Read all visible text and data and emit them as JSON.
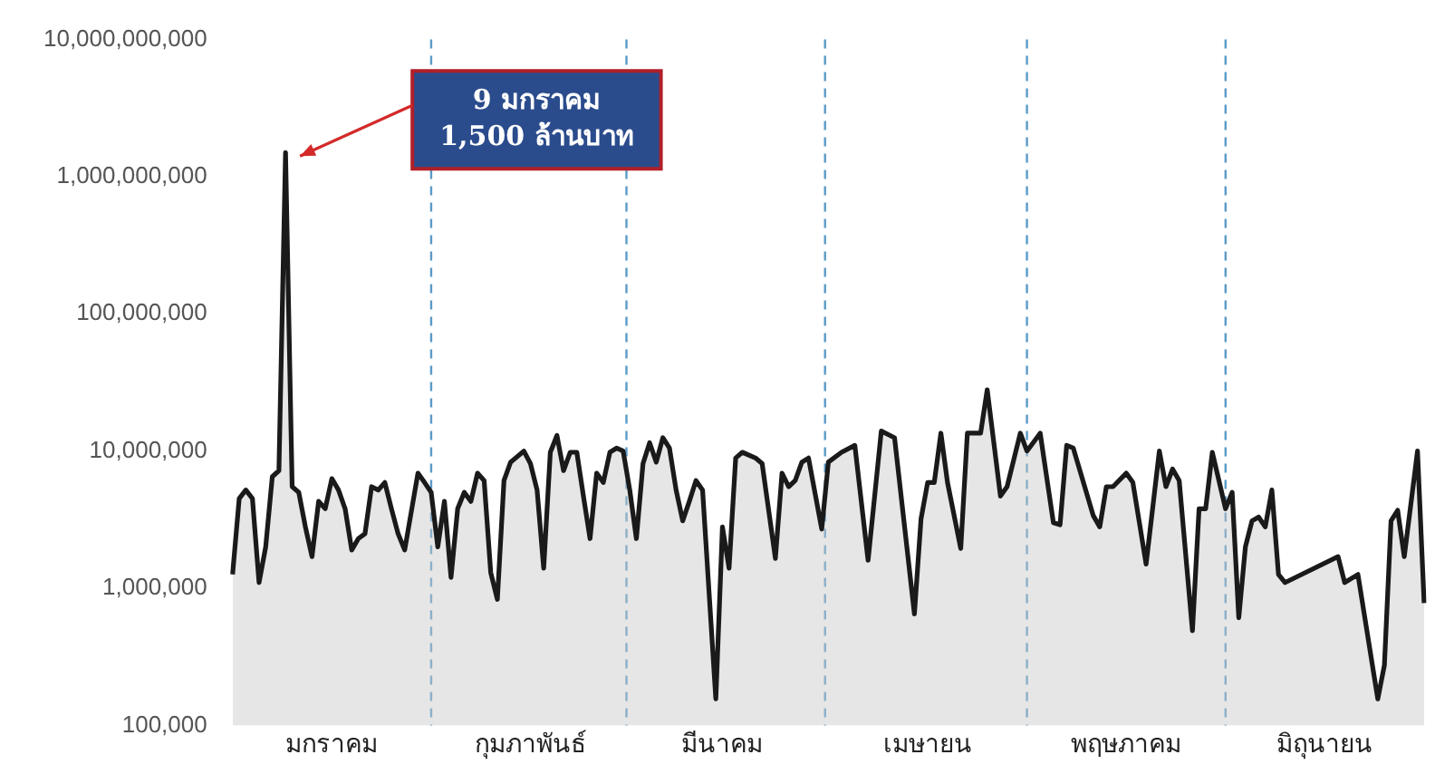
{
  "chart_data": {
    "type": "area",
    "categories": [
      null,
      null,
      null,
      null,
      null,
      null,
      null,
      null,
      null,
      null,
      null,
      null,
      null,
      null,
      null,
      "มกราคม",
      null,
      null,
      null,
      null,
      null,
      null,
      null,
      null,
      null,
      null,
      null,
      null,
      null,
      null,
      null,
      null,
      null,
      null,
      null,
      null,
      null,
      null,
      null,
      null,
      null,
      null,
      null,
      null,
      null,
      "กุมภาพันธ์",
      null,
      null,
      null,
      null,
      null,
      null,
      null,
      null,
      null,
      null,
      null,
      null,
      null,
      null,
      null,
      null,
      null,
      null,
      null,
      null,
      null,
      null,
      null,
      null,
      null,
      null,
      null,
      null,
      "มีนาคม",
      null,
      null,
      null,
      null,
      null,
      null,
      null,
      null,
      null,
      null,
      null,
      null,
      null,
      null,
      null,
      null,
      null,
      null,
      null,
      null,
      null,
      null,
      null,
      null,
      null,
      null,
      null,
      null,
      null,
      null,
      "เมษายน",
      null,
      null,
      null,
      null,
      null,
      null,
      null,
      null,
      null,
      null,
      null,
      null,
      null,
      null,
      null,
      null,
      null,
      null,
      null,
      null,
      null,
      null,
      null,
      null,
      null,
      null,
      null,
      null,
      null,
      "พฤษภาคม",
      null,
      null,
      null,
      null,
      null,
      null,
      null,
      null,
      null,
      null,
      null,
      null,
      null,
      null,
      null,
      null,
      null,
      null,
      null,
      null,
      null,
      null,
      null,
      null,
      null,
      null,
      null,
      null,
      null,
      "มิถุนายน",
      null,
      null,
      null,
      null,
      null,
      null,
      null,
      null,
      null,
      null,
      null,
      null,
      null,
      null,
      null
    ],
    "series": [
      {
        "color": "#1a1a1a",
        "values": [
          1260000,
          4500000,
          5200000,
          4500000,
          1100000,
          2000000,
          6500000,
          7200000,
          1500000000,
          5500000,
          5000000,
          2800000,
          1700000,
          4300000,
          3800000,
          6300000,
          5200000,
          3800000,
          1900000,
          2300000,
          2500000,
          5500000,
          5200000,
          5900000,
          3800000,
          2500000,
          1900000,
          null,
          6900000,
          5900000,
          5000000,
          2000000,
          4300000,
          1200000,
          3800000,
          5000000,
          4300000,
          6900000,
          6100000,
          1300000,
          830000,
          6100000,
          8300000,
          null,
          10000000,
          8100000,
          5200000,
          1400000,
          9800000,
          13000000,
          7200000,
          9800000,
          9800000,
          4700000,
          2300000,
          6900000,
          5900000,
          9800000,
          10500000,
          10000000,
          5200000,
          2300000,
          8100000,
          11500000,
          8300000,
          12500000,
          10500000,
          5200000,
          3100000,
          4300000,
          6100000,
          5200000,
          null,
          156000,
          2800000,
          1400000,
          8900000,
          9800000,
          null,
          8900000,
          8100000,
          null,
          1650000,
          6900000,
          5500000,
          6100000,
          8300000,
          8900000,
          null,
          2700000,
          8300000,
          null,
          9800000,
          null,
          11000000,
          null,
          1600000,
          null,
          14000000,
          null,
          12500000,
          null,
          null,
          650000,
          3200000,
          5900000,
          5900000,
          13500000,
          5900000,
          null,
          1950000,
          13500000,
          null,
          13500000,
          28000000,
          null,
          4700000,
          5500000,
          null,
          13500000,
          10000000,
          null,
          13500000,
          null,
          3000000,
          2900000,
          11000000,
          10500000,
          null,
          null,
          3400000,
          2800000,
          5500000,
          5500000,
          null,
          6900000,
          5900000,
          null,
          1500000,
          null,
          10000000,
          5500000,
          7400000,
          6100000,
          null,
          490000,
          3800000,
          3800000,
          9800000,
          null,
          3800000,
          5000000,
          610000,
          2000000,
          3100000,
          3300000,
          2800000,
          5200000,
          1260000,
          1100000,
          null,
          null,
          null,
          null,
          null,
          null,
          null,
          1700000,
          1100000,
          null,
          1260000,
          null,
          null,
          156000,
          275000,
          3100000,
          3700000,
          1700000,
          null,
          10000000,
          780000
        ]
      }
    ],
    "log": "y",
    "ylim": [
      100000,
      10000000000
    ],
    "yticks": [
      {
        "value": 100000,
        "label": "100,000"
      },
      {
        "value": 1000000,
        "label": "1,000,000"
      },
      {
        "value": 10000000,
        "label": "10,000,000"
      },
      {
        "value": 100000000,
        "label": "100,000,000"
      },
      {
        "value": 1000000000,
        "label": "1,000,000,000"
      },
      {
        "value": 10000000000,
        "label": "10,000,000,000"
      }
    ],
    "ref_lines": [
      {
        "axis": "x",
        "color": "#5b9bc8",
        "line_style": "dashed"
      },
      {
        "axis": "x",
        "color": "#5b9bc8",
        "line_style": "dashed"
      },
      {
        "axis": "x",
        "color": "#5b9bc8",
        "line_style": "dashed"
      },
      {
        "axis": "x",
        "color": "#5b9bc8",
        "line_style": "dashed"
      },
      {
        "axis": "x",
        "color": "#5b9bc8",
        "line_style": "dashed"
      }
    ],
    "annotations": [
      "9 มกราคม\n1,500 ล้านบาท"
    ],
    "grid": false,
    "legend": false,
    "marker": "none",
    "line_style": "solid"
  }
}
